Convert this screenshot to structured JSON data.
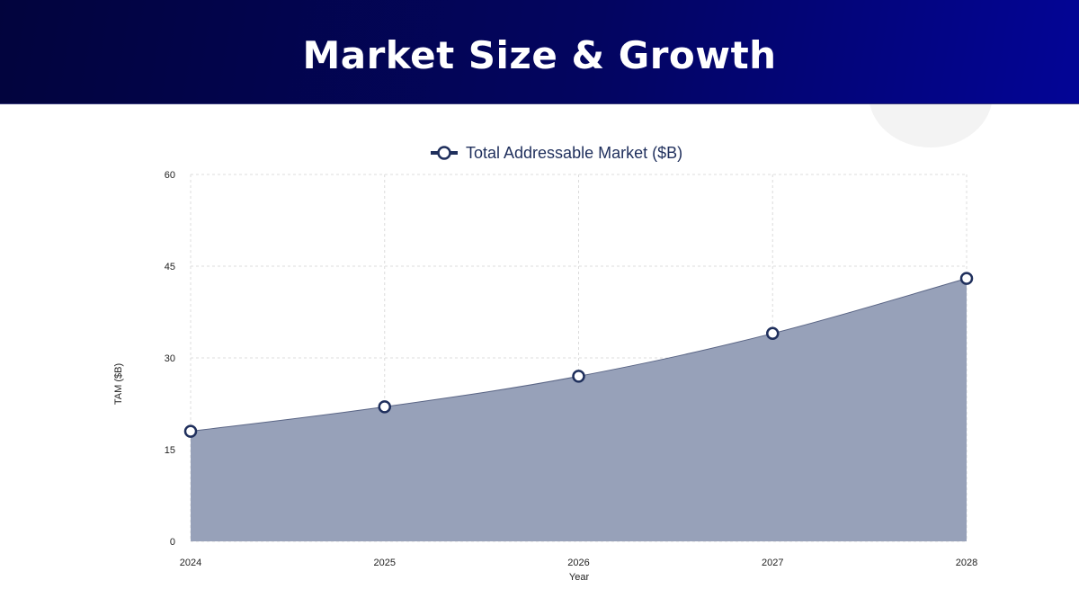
{
  "header": {
    "title": "Market Size & Growth"
  },
  "colors": {
    "header_start": "#02043d",
    "header_end": "#030596",
    "series": "#1f2f5c",
    "area_fill": "#97a1b9"
  },
  "chart_data": {
    "type": "area",
    "title": "",
    "xlabel": "Year",
    "ylabel": "TAM ($B)",
    "categories": [
      "2024",
      "2025",
      "2026",
      "2027",
      "2028"
    ],
    "series": [
      {
        "name": "Total Addressable Market ($B)",
        "values": [
          18,
          22,
          27,
          34,
          43
        ]
      }
    ],
    "ylim": [
      0,
      60
    ],
    "yticks": [
      "0",
      "15",
      "30",
      "45",
      "60"
    ],
    "grid": true,
    "legend": "top-center",
    "markers": "hollow-circle",
    "smooth": true
  }
}
